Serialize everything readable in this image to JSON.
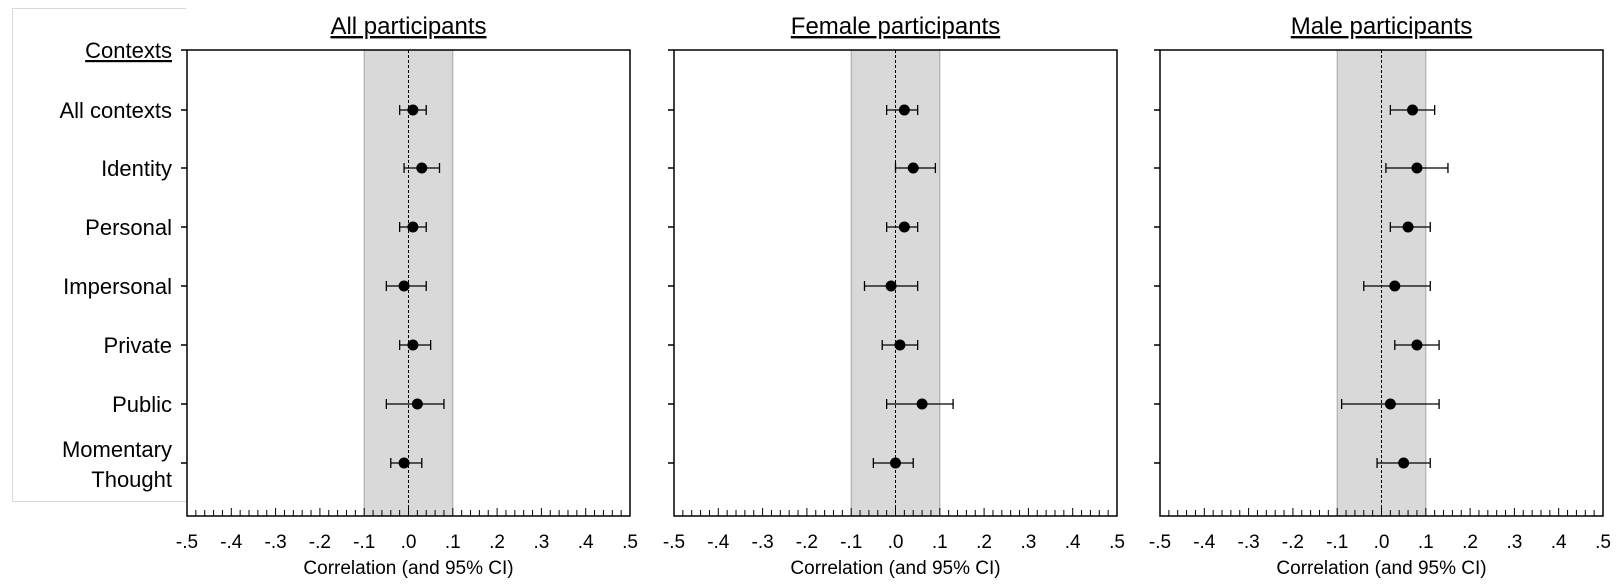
{
  "y_axis_header": "Contexts",
  "contexts": [
    "All contexts",
    "Identity",
    "Personal",
    "Impersonal",
    "Private",
    "Public",
    "Momentary Thought"
  ],
  "colors": {
    "band": "#d9d9d9",
    "marker": "#000000",
    "frame": "#000000"
  },
  "chart_data": [
    {
      "type": "scatter",
      "title": "All participants",
      "xlabel": "Correlation  (and 95% CI)",
      "xlim": [
        -0.5,
        0.5
      ],
      "xticks": [
        "-.5",
        "-.4",
        "-.3",
        "-.2",
        "-.1",
        ".0",
        ".1",
        ".2",
        ".3",
        ".4",
        ".5"
      ],
      "band": [
        -0.1,
        0.1
      ],
      "reference_line": 0.0,
      "categories": [
        "All contexts",
        "Identity",
        "Personal",
        "Impersonal",
        "Private",
        "Public",
        "Momentary Thought"
      ],
      "points": [
        {
          "context": "All contexts",
          "r": 0.01,
          "lo": -0.02,
          "hi": 0.04
        },
        {
          "context": "Identity",
          "r": 0.03,
          "lo": -0.01,
          "hi": 0.07
        },
        {
          "context": "Personal",
          "r": 0.01,
          "lo": -0.02,
          "hi": 0.04
        },
        {
          "context": "Impersonal",
          "r": -0.01,
          "lo": -0.05,
          "hi": 0.04
        },
        {
          "context": "Private",
          "r": 0.01,
          "lo": -0.02,
          "hi": 0.05
        },
        {
          "context": "Public",
          "r": 0.02,
          "lo": -0.05,
          "hi": 0.08
        },
        {
          "context": "Momentary Thought",
          "r": -0.01,
          "lo": -0.04,
          "hi": 0.03
        }
      ]
    },
    {
      "type": "scatter",
      "title": "Female participants",
      "xlabel": "Correlation  (and 95% CI)",
      "xlim": [
        -0.5,
        0.5
      ],
      "xticks": [
        "-.5",
        "-.4",
        "-.3",
        "-.2",
        "-.1",
        ".0",
        ".1",
        ".2",
        ".3",
        ".4",
        ".5"
      ],
      "band": [
        -0.1,
        0.1
      ],
      "reference_line": 0.0,
      "categories": [
        "All contexts",
        "Identity",
        "Personal",
        "Impersonal",
        "Private",
        "Public",
        "Momentary Thought"
      ],
      "points": [
        {
          "context": "All contexts",
          "r": 0.02,
          "lo": -0.02,
          "hi": 0.05
        },
        {
          "context": "Identity",
          "r": 0.04,
          "lo": 0.0,
          "hi": 0.09
        },
        {
          "context": "Personal",
          "r": 0.02,
          "lo": -0.02,
          "hi": 0.05
        },
        {
          "context": "Impersonal",
          "r": -0.01,
          "lo": -0.07,
          "hi": 0.05
        },
        {
          "context": "Private",
          "r": 0.01,
          "lo": -0.03,
          "hi": 0.05
        },
        {
          "context": "Public",
          "r": 0.06,
          "lo": -0.02,
          "hi": 0.13
        },
        {
          "context": "Momentary Thought",
          "r": 0.0,
          "lo": -0.05,
          "hi": 0.04
        }
      ]
    },
    {
      "type": "scatter",
      "title": "Male participants",
      "xlabel": "Correlation  (and 95% CI)",
      "xlim": [
        -0.5,
        0.5
      ],
      "xticks": [
        "-.5",
        "-.4",
        "-.3",
        "-.2",
        "-.1",
        ".0",
        ".1",
        ".2",
        ".3",
        ".4",
        ".5"
      ],
      "band": [
        -0.1,
        0.1
      ],
      "reference_line": 0.0,
      "categories": [
        "All contexts",
        "Identity",
        "Personal",
        "Impersonal",
        "Private",
        "Public",
        "Momentary Thought"
      ],
      "points": [
        {
          "context": "All contexts",
          "r": 0.07,
          "lo": 0.02,
          "hi": 0.12
        },
        {
          "context": "Identity",
          "r": 0.08,
          "lo": 0.01,
          "hi": 0.15
        },
        {
          "context": "Personal",
          "r": 0.06,
          "lo": 0.02,
          "hi": 0.11
        },
        {
          "context": "Impersonal",
          "r": 0.03,
          "lo": -0.04,
          "hi": 0.11
        },
        {
          "context": "Private",
          "r": 0.08,
          "lo": 0.03,
          "hi": 0.13
        },
        {
          "context": "Public",
          "r": 0.02,
          "lo": -0.09,
          "hi": 0.13
        },
        {
          "context": "Momentary Thought",
          "r": 0.05,
          "lo": -0.01,
          "hi": 0.11
        }
      ]
    }
  ]
}
